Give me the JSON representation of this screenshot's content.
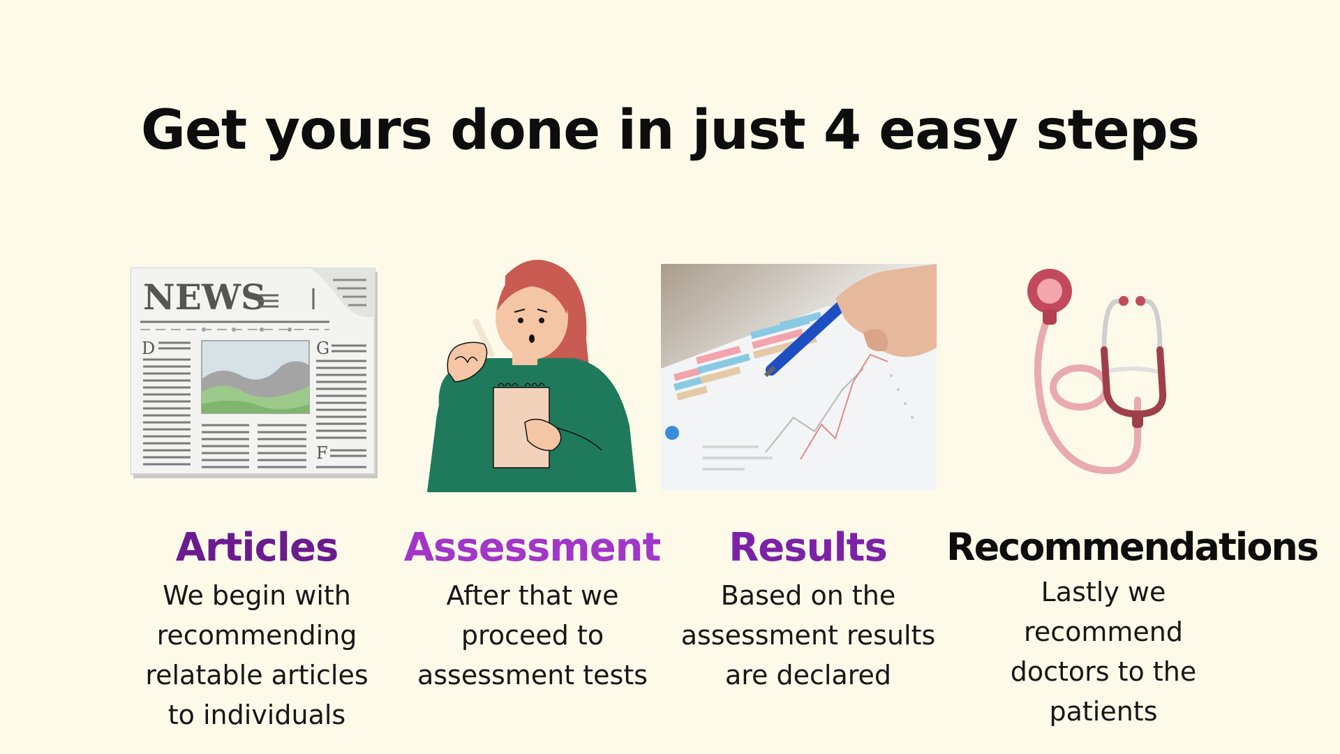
{
  "headline": "Get yours done in just 4 easy steps",
  "colors": {
    "background": "#fdfae9",
    "articles_title": "#6a1b8f",
    "assessment_title": "#a236c9",
    "results_title": "#7b22a8",
    "recommendations_title": "#0d0d0d"
  },
  "steps": [
    {
      "title": "Articles",
      "description": "We begin with recommending relatable articles to individuals",
      "icon": "newspaper-icon",
      "image_text": {
        "masthead": "NEWS",
        "letters": [
          "D",
          "G",
          "F"
        ]
      }
    },
    {
      "title": "Assessment",
      "description": "After that we proceed to assessment tests",
      "icon": "woman-thinking-notepad-illustration"
    },
    {
      "title": "Results",
      "description": "Based on the assessment results are declared",
      "icon": "chart-analysis-photo"
    },
    {
      "title": "Recommendations",
      "description": "Lastly we recommend doctors to the patients",
      "icon": "stethoscope-icon"
    }
  ]
}
